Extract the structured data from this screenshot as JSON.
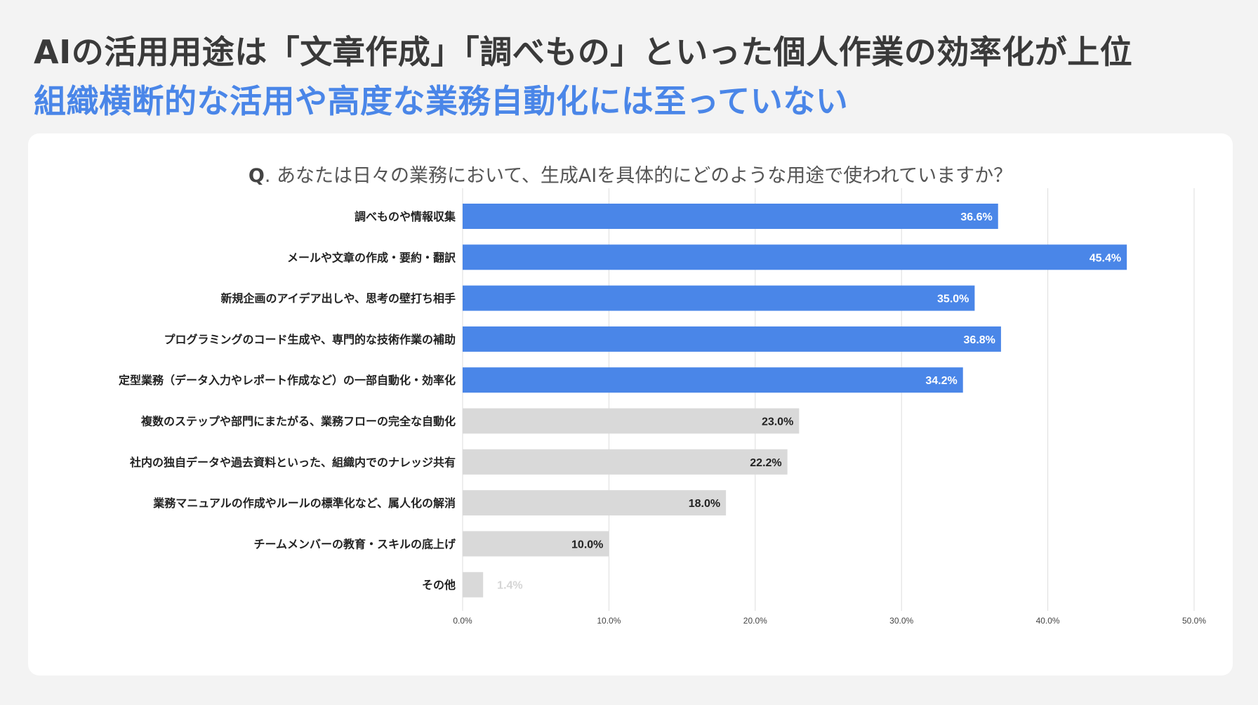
{
  "headline": "AIの活用用途は「文章作成」「調べもの」といった個人作業の効率化が上位",
  "subhead": "組織横断的な活用や高度な業務自動化には至っていない",
  "question": {
    "prefix": "Q",
    "text": ". あなたは日々の業務において、生成AIを具体的にどのような用途で使われていますか？"
  },
  "colors": {
    "highlight": "#4a86e8",
    "other": "#d9d9d9",
    "headline": "#3a3a3a",
    "subhead": "#4a86e8",
    "grid": "#dddddd"
  },
  "chart_data": {
    "type": "bar",
    "orientation": "horizontal",
    "categories": [
      "調べものや情報収集",
      "メールや文章の作成・要約・翻訳",
      "新規企画のアイデア出しや、思考の壁打ち相手",
      "プログラミングのコード生成や、専門的な技術作業の補助",
      "定型業務（データ入力やレポート作成など）の一部自動化・効率化",
      "複数のステップや部門にまたがる、業務フローの完全な自動化",
      "社内の独自データや過去資料といった、組織内でのナレッジ共有",
      "業務マニュアルの作成やルールの標準化など、属人化の解消",
      "チームメンバーの教育・スキルの底上げ",
      "その他"
    ],
    "values": [
      36.6,
      45.4,
      35.0,
      36.8,
      34.2,
      23.0,
      22.2,
      18.0,
      10.0,
      1.4
    ],
    "value_labels": [
      "36.6%",
      "45.4%",
      "35.0%",
      "36.8%",
      "34.2%",
      "23.0%",
      "22.2%",
      "18.0%",
      "10.0%",
      "1.4%"
    ],
    "highlight": [
      true,
      true,
      true,
      true,
      true,
      false,
      false,
      false,
      false,
      false
    ],
    "xlim": [
      0,
      50
    ],
    "xticks": [
      "0.0%",
      "10.0%",
      "20.0%",
      "30.0%",
      "40.0%",
      "50.0%"
    ],
    "grid": true
  }
}
